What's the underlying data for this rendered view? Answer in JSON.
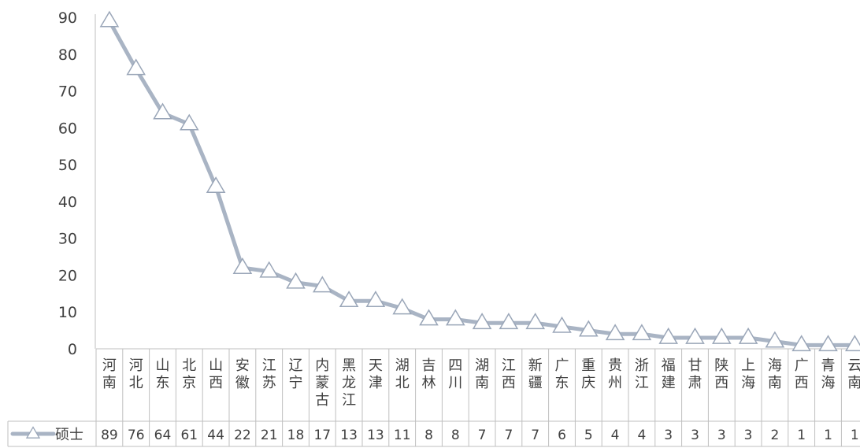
{
  "chart_data": {
    "type": "line",
    "categories": [
      "河南",
      "河北",
      "山东",
      "北京",
      "山西",
      "安徽",
      "江苏",
      "辽宁",
      "内蒙古",
      "黑龙江",
      "天津",
      "湖北",
      "吉林",
      "四川",
      "湖南",
      "江西",
      "新疆",
      "广东",
      "重庆",
      "贵州",
      "浙江",
      "福建",
      "甘肃",
      "陕西",
      "上海",
      "海南",
      "广西",
      "青海",
      "云南"
    ],
    "series": [
      {
        "name": "硕士",
        "values": [
          89,
          76,
          64,
          61,
          44,
          22,
          21,
          18,
          17,
          13,
          13,
          11,
          8,
          8,
          7,
          7,
          7,
          6,
          5,
          4,
          4,
          3,
          3,
          3,
          3,
          2,
          1,
          1,
          1
        ]
      }
    ],
    "yticks": [
      "0",
      "10",
      "20",
      "30",
      "40",
      "50",
      "60",
      "70",
      "80",
      "90"
    ],
    "ylim": [
      0,
      90
    ],
    "grid": false,
    "legend": "data-table-left",
    "marker": "triangle",
    "colors": {
      "line": "#a9b4c4",
      "marker_stroke": "#a9b4c4",
      "marker_fill": "#ffffff",
      "axis": "#bfbfbf",
      "text": "#404040"
    }
  }
}
